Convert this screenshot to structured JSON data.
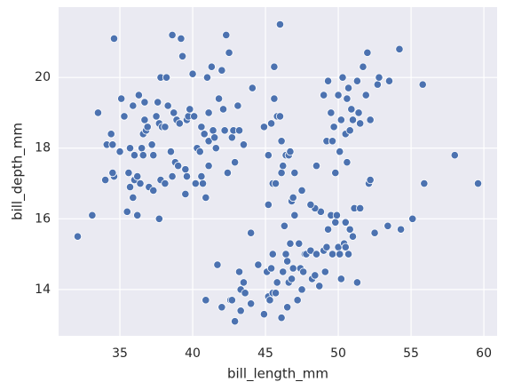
{
  "chart_data": {
    "type": "scatter",
    "x_label": "bill_length_mm",
    "y_label": "bill_depth_mm",
    "xlim": [
      30.79,
      60.91
    ],
    "ylim": [
      12.69,
      21.99
    ],
    "xticks": [
      35,
      40,
      45,
      50,
      55,
      60
    ],
    "yticks": [
      14,
      16,
      18,
      20
    ],
    "grid": true,
    "background": "#eaeaf2",
    "color": "#4c72b0",
    "x": [
      32.1,
      33.1,
      33.5,
      34.0,
      34.1,
      34.4,
      34.5,
      34.6,
      34.6,
      35.0,
      35.1,
      35.3,
      35.5,
      35.6,
      35.7,
      35.9,
      35.9,
      36.0,
      36.0,
      36.2,
      36.2,
      36.3,
      36.4,
      36.5,
      36.6,
      36.7,
      36.7,
      36.8,
      36.9,
      37.0,
      37.2,
      37.3,
      37.5,
      37.6,
      37.7,
      37.7,
      37.8,
      37.8,
      37.9,
      38.1,
      38.1,
      38.2,
      38.3,
      38.5,
      38.6,
      38.6,
      38.7,
      38.8,
      38.9,
      39.0,
      39.1,
      39.2,
      39.3,
      39.5,
      39.6,
      39.7,
      39.8,
      40.0,
      40.1,
      40.2,
      40.3,
      40.5,
      40.6,
      40.7,
      40.8,
      40.9,
      41.0,
      41.1,
      41.1,
      41.3,
      41.4,
      41.5,
      41.6,
      41.8,
      42.0,
      42.1,
      42.2,
      42.3,
      42.5,
      42.7,
      42.8,
      42.9,
      43.1,
      43.2,
      44.1,
      44.9,
      45.6,
      45.8,
      46.0,
      46.1,
      40.6,
      39.6,
      37.3,
      34.5,
      36.6,
      39.5,
      41.1,
      35.7,
      40.9,
      41.7,
      42.0,
      42.6,
      42.7,
      42.9,
      43.2,
      43.3,
      43.3,
      43.5,
      43.6,
      44.0,
      44.5,
      44.9,
      45.1,
      45.2,
      45.3,
      45.4,
      45.5,
      45.7,
      45.8,
      46.1,
      46.2,
      46.3,
      46.4,
      46.5,
      46.6,
      46.8,
      46.9,
      47.2,
      47.3,
      47.4,
      47.5,
      47.6,
      47.7,
      47.8,
      48.1,
      48.2,
      48.4,
      48.5,
      48.7,
      48.8,
      49.0,
      49.1,
      49.2,
      49.3,
      49.5,
      49.6,
      49.8,
      50.0,
      50.1,
      50.2,
      50.4,
      50.5,
      50.7,
      50.8,
      51.1,
      51.3,
      51.5,
      52.1,
      52.2,
      52.5,
      53.4,
      54.3,
      55.1,
      55.9,
      59.6,
      45.5,
      46.5,
      47.0,
      44.0,
      45.2,
      46.7,
      48.4,
      49.9,
      50.5,
      51.0,
      45.2,
      45.4,
      45.5,
      45.6,
      45.7,
      46.0,
      46.1,
      46.4,
      46.6,
      46.7,
      46.8,
      46.9,
      47.0,
      47.5,
      48.1,
      48.5,
      49.0,
      49.2,
      49.3,
      49.5,
      49.6,
      49.7,
      49.8,
      50.0,
      50.1,
      50.2,
      50.3,
      50.5,
      50.6,
      50.7,
      50.8,
      50.9,
      51.0,
      51.3,
      51.4,
      51.5,
      51.7,
      51.9,
      52.0,
      52.2,
      52.7,
      52.8,
      53.5,
      54.2,
      55.8,
      58.0,
      42.4,
      43.5,
      46.2,
      50.6
    ],
    "values": [
      15.5,
      16.1,
      19.0,
      17.1,
      18.1,
      18.4,
      18.1,
      21.1,
      17.2,
      17.9,
      19.4,
      18.9,
      16.2,
      17.3,
      18.0,
      19.2,
      16.6,
      17.1,
      17.8,
      17.2,
      16.1,
      19.5,
      17.0,
      18.0,
      18.4,
      19.3,
      18.8,
      18.5,
      18.6,
      16.9,
      18.1,
      17.8,
      18.9,
      19.3,
      18.7,
      16.0,
      20.0,
      17.1,
      18.6,
      18.6,
      17.0,
      20.0,
      19.2,
      17.9,
      21.2,
      17.2,
      19.0,
      17.6,
      18.8,
      17.5,
      18.7,
      21.1,
      20.6,
      17.4,
      18.8,
      18.9,
      19.1,
      20.1,
      18.9,
      17.0,
      18.0,
      17.9,
      18.6,
      17.0,
      18.4,
      16.6,
      20.0,
      19.0,
      18.2,
      20.3,
      18.5,
      18.3,
      18.0,
      19.4,
      20.2,
      19.1,
      18.5,
      21.2,
      20.7,
      18.3,
      18.5,
      17.6,
      19.2,
      18.5,
      19.7,
      18.6,
      20.3,
      18.9,
      21.5,
      18.2,
      17.2,
      17.2,
      16.8,
      17.3,
      17.8,
      16.7,
      17.5,
      16.9,
      13.7,
      14.7,
      13.5,
      13.7,
      13.7,
      13.1,
      14.5,
      13.4,
      14.0,
      14.2,
      13.9,
      13.6,
      14.7,
      13.3,
      14.5,
      13.8,
      13.7,
      14.6,
      13.9,
      13.9,
      14.2,
      13.2,
      14.5,
      15.8,
      15.0,
      13.5,
      14.2,
      14.3,
      14.6,
      13.7,
      15.3,
      14.6,
      14.0,
      14.5,
      15.0,
      15.0,
      15.1,
      14.3,
      14.4,
      15.0,
      14.1,
      16.2,
      15.1,
      14.5,
      15.2,
      15.7,
      16.1,
      15.0,
      15.9,
      15.2,
      15.0,
      14.3,
      15.3,
      15.2,
      15.0,
      15.7,
      16.3,
      14.2,
      16.3,
      17.0,
      17.1,
      15.6,
      15.8,
      15.7,
      16.0,
      17.0,
      17.0,
      15.0,
      14.8,
      16.1,
      15.6,
      16.4,
      15.3,
      16.3,
      16.1,
      15.9,
      15.5,
      17.8,
      18.7,
      17.0,
      19.4,
      17.0,
      18.9,
      17.3,
      17.8,
      17.8,
      17.9,
      16.5,
      16.6,
      17.3,
      16.8,
      16.4,
      17.5,
      19.5,
      18.2,
      19.9,
      19.0,
      18.2,
      18.6,
      17.3,
      19.5,
      17.9,
      18.8,
      20.0,
      18.4,
      19.4,
      19.7,
      18.5,
      19.1,
      18.8,
      19.9,
      19.0,
      18.7,
      20.3,
      19.5,
      20.7,
      18.8,
      19.8,
      20.0,
      19.9,
      20.8,
      19.8,
      17.8,
      17.3,
      18.1,
      17.5,
      17.6
    ]
  }
}
